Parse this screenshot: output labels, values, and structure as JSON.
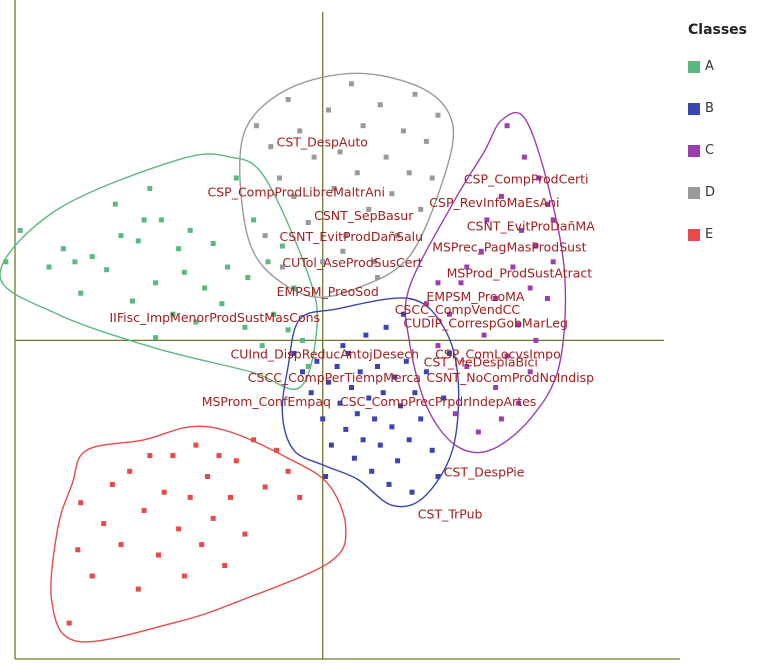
{
  "chart_data": {
    "type": "scatter",
    "title": "",
    "xlabel": "",
    "ylabel": "",
    "grid": false,
    "legend": {
      "title": "Classes",
      "placement": "right"
    },
    "classes": [
      {
        "name": "A",
        "color": "#5bb980"
      },
      {
        "name": "B",
        "color": "#3a45b0"
      },
      {
        "name": "C",
        "color": "#9b3fb0"
      },
      {
        "name": "D",
        "color": "#9a9a9a"
      },
      {
        "name": "E",
        "color": "#e84a4a"
      }
    ],
    "series": [
      {
        "name": "A",
        "hull": [
          [
            -1.12,
            0.25
          ],
          [
            -0.92,
            0.5
          ],
          [
            -0.5,
            0.69
          ],
          [
            -0.32,
            0.7
          ],
          [
            -0.2,
            0.62
          ],
          [
            -0.05,
            0.25
          ],
          [
            -0.02,
            0.05
          ],
          [
            -0.08,
            -0.18
          ],
          [
            -0.25,
            -0.12
          ],
          [
            -0.58,
            -0.03
          ],
          [
            -0.92,
            0.1
          ]
        ],
        "points": [
          [
            -1.1,
            0.3
          ],
          [
            -1.05,
            0.42
          ],
          [
            -0.95,
            0.28
          ],
          [
            -0.9,
            0.35
          ],
          [
            -0.86,
            0.3
          ],
          [
            -0.84,
            0.18
          ],
          [
            -0.8,
            0.32
          ],
          [
            -0.75,
            0.27
          ],
          [
            -0.72,
            0.52
          ],
          [
            -0.7,
            0.4
          ],
          [
            -0.66,
            0.15
          ],
          [
            -0.64,
            0.38
          ],
          [
            -0.62,
            0.46
          ],
          [
            -0.6,
            0.58
          ],
          [
            -0.58,
            0.22
          ],
          [
            -0.56,
            0.46
          ],
          [
            -0.52,
            0.1
          ],
          [
            -0.5,
            0.35
          ],
          [
            -0.48,
            0.26
          ],
          [
            -0.46,
            0.42
          ],
          [
            -0.44,
            0.07
          ],
          [
            -0.41,
            0.2
          ],
          [
            -0.38,
            0.37
          ],
          [
            -0.35,
            0.14
          ],
          [
            -0.33,
            0.28
          ],
          [
            -0.3,
            0.62
          ],
          [
            -0.27,
            0.05
          ],
          [
            -0.26,
            0.24
          ],
          [
            -0.24,
            0.46
          ],
          [
            -0.21,
            -0.02
          ],
          [
            -0.19,
            0.3
          ],
          [
            -0.17,
            0.1
          ],
          [
            -0.14,
            0.36
          ],
          [
            -0.12,
            0.04
          ],
          [
            -0.1,
            0.2
          ],
          [
            -0.07,
            0.0
          ],
          [
            -0.05,
            -0.1
          ],
          [
            -0.58,
            0.01
          ]
        ]
      },
      {
        "name": "B",
        "hull": [
          [
            -0.12,
            -0.1
          ],
          [
            -0.08,
            0.08
          ],
          [
            0.05,
            0.12
          ],
          [
            0.3,
            0.16
          ],
          [
            0.42,
            0.05
          ],
          [
            0.47,
            -0.15
          ],
          [
            0.45,
            -0.42
          ],
          [
            0.35,
            -0.6
          ],
          [
            0.24,
            -0.63
          ],
          [
            0.12,
            -0.53
          ],
          [
            0.01,
            -0.48
          ],
          [
            -0.1,
            -0.42
          ],
          [
            -0.14,
            -0.28
          ]
        ],
        "points": [
          [
            -0.1,
            -0.05
          ],
          [
            -0.07,
            -0.12
          ],
          [
            -0.04,
            -0.2
          ],
          [
            -0.02,
            -0.08
          ],
          [
            0.0,
            -0.3
          ],
          [
            0.02,
            -0.16
          ],
          [
            0.03,
            -0.4
          ],
          [
            0.05,
            -0.1
          ],
          [
            0.06,
            -0.24
          ],
          [
            0.08,
            -0.34
          ],
          [
            0.09,
            -0.05
          ],
          [
            0.1,
            -0.18
          ],
          [
            0.11,
            -0.45
          ],
          [
            0.12,
            -0.28
          ],
          [
            0.13,
            -0.12
          ],
          [
            0.14,
            -0.38
          ],
          [
            0.15,
            0.02
          ],
          [
            0.16,
            -0.22
          ],
          [
            0.17,
            -0.5
          ],
          [
            0.18,
            -0.3
          ],
          [
            0.19,
            -0.1
          ],
          [
            0.2,
            -0.4
          ],
          [
            0.21,
            -0.2
          ],
          [
            0.22,
            0.05
          ],
          [
            0.23,
            -0.55
          ],
          [
            0.24,
            -0.33
          ],
          [
            0.25,
            -0.14
          ],
          [
            0.26,
            -0.46
          ],
          [
            0.27,
            -0.25
          ],
          [
            0.28,
            0.1
          ],
          [
            0.29,
            -0.08
          ],
          [
            0.3,
            -0.38
          ],
          [
            0.31,
            -0.58
          ],
          [
            0.32,
            -0.2
          ],
          [
            0.34,
            -0.3
          ],
          [
            0.36,
            -0.12
          ],
          [
            0.38,
            -0.42
          ],
          [
            0.4,
            -0.52
          ],
          [
            0.42,
            -0.22
          ],
          [
            0.44,
            -0.05
          ],
          [
            0.07,
            -0.02
          ],
          [
            0.01,
            -0.52
          ]
        ]
      },
      {
        "name": "C",
        "hull": [
          [
            0.3,
            0.2
          ],
          [
            0.45,
            0.52
          ],
          [
            0.56,
            0.72
          ],
          [
            0.62,
            0.84
          ],
          [
            0.7,
            0.85
          ],
          [
            0.78,
            0.6
          ],
          [
            0.84,
            0.25
          ],
          [
            0.82,
            -0.1
          ],
          [
            0.72,
            -0.3
          ],
          [
            0.58,
            -0.42
          ],
          [
            0.46,
            -0.4
          ],
          [
            0.36,
            -0.25
          ],
          [
            0.3,
            0.0
          ]
        ],
        "points": [
          [
            0.64,
            0.82
          ],
          [
            0.7,
            0.7
          ],
          [
            0.75,
            0.62
          ],
          [
            0.78,
            0.52
          ],
          [
            0.8,
            0.46
          ],
          [
            0.62,
            0.55
          ],
          [
            0.57,
            0.46
          ],
          [
            0.69,
            0.42
          ],
          [
            0.74,
            0.36
          ],
          [
            0.8,
            0.3
          ],
          [
            0.55,
            0.34
          ],
          [
            0.66,
            0.28
          ],
          [
            0.72,
            0.2
          ],
          [
            0.78,
            0.16
          ],
          [
            0.48,
            0.22
          ],
          [
            0.6,
            0.16
          ],
          [
            0.68,
            0.06
          ],
          [
            0.74,
            0.0
          ],
          [
            0.44,
            0.1
          ],
          [
            0.56,
            0.02
          ],
          [
            0.64,
            -0.06
          ],
          [
            0.72,
            -0.12
          ],
          [
            0.4,
            -0.02
          ],
          [
            0.5,
            -0.1
          ],
          [
            0.6,
            -0.18
          ],
          [
            0.68,
            -0.24
          ],
          [
            0.46,
            -0.28
          ],
          [
            0.54,
            -0.35
          ],
          [
            0.62,
            -0.3
          ],
          [
            0.36,
            0.14
          ],
          [
            0.4,
            0.22
          ],
          [
            0.5,
            0.28
          ]
        ]
      },
      {
        "name": "D",
        "hull": [
          [
            -0.27,
            0.8
          ],
          [
            -0.12,
            0.96
          ],
          [
            0.12,
            1.02
          ],
          [
            0.35,
            0.96
          ],
          [
            0.45,
            0.83
          ],
          [
            0.42,
            0.62
          ],
          [
            0.3,
            0.32
          ],
          [
            0.12,
            0.2
          ],
          [
            -0.05,
            0.17
          ],
          [
            -0.22,
            0.3
          ],
          [
            -0.28,
            0.52
          ]
        ],
        "points": [
          [
            -0.23,
            0.82
          ],
          [
            -0.18,
            0.74
          ],
          [
            -0.15,
            0.62
          ],
          [
            -0.12,
            0.92
          ],
          [
            -0.1,
            0.55
          ],
          [
            -0.08,
            0.8
          ],
          [
            -0.05,
            0.45
          ],
          [
            -0.03,
            0.7
          ],
          [
            0.0,
            0.3
          ],
          [
            0.02,
            0.88
          ],
          [
            0.04,
            0.58
          ],
          [
            0.06,
            0.72
          ],
          [
            0.08,
            0.4
          ],
          [
            0.1,
            0.98
          ],
          [
            0.12,
            0.64
          ],
          [
            0.14,
            0.82
          ],
          [
            0.16,
            0.5
          ],
          [
            0.18,
            0.3
          ],
          [
            0.2,
            0.9
          ],
          [
            0.22,
            0.7
          ],
          [
            0.24,
            0.56
          ],
          [
            0.26,
            0.4
          ],
          [
            0.28,
            0.8
          ],
          [
            0.3,
            0.64
          ],
          [
            0.32,
            0.94
          ],
          [
            0.34,
            0.5
          ],
          [
            0.36,
            0.76
          ],
          [
            0.38,
            0.62
          ],
          [
            0.4,
            0.86
          ],
          [
            0.19,
            0.24
          ],
          [
            -0.2,
            0.4
          ],
          [
            -0.14,
            0.28
          ],
          [
            0.07,
            0.34
          ]
        ]
      },
      {
        "name": "E",
        "hull": [
          [
            -0.82,
            -0.42
          ],
          [
            -0.62,
            -0.38
          ],
          [
            -0.46,
            -0.33
          ],
          [
            -0.32,
            -0.35
          ],
          [
            -0.12,
            -0.45
          ],
          [
            0.02,
            -0.55
          ],
          [
            0.08,
            -0.72
          ],
          [
            0.02,
            -0.85
          ],
          [
            -0.3,
            -1.0
          ],
          [
            -0.52,
            -1.08
          ],
          [
            -0.85,
            -1.15
          ],
          [
            -0.94,
            -1.0
          ],
          [
            -0.92,
            -0.72
          ],
          [
            -0.87,
            -0.55
          ]
        ],
        "points": [
          [
            -0.88,
            -1.08
          ],
          [
            -0.85,
            -0.8
          ],
          [
            -0.84,
            -0.62
          ],
          [
            -0.8,
            -0.9
          ],
          [
            -0.76,
            -0.7
          ],
          [
            -0.73,
            -0.55
          ],
          [
            -0.7,
            -0.78
          ],
          [
            -0.67,
            -0.5
          ],
          [
            -0.64,
            -0.95
          ],
          [
            -0.62,
            -0.65
          ],
          [
            -0.6,
            -0.44
          ],
          [
            -0.57,
            -0.82
          ],
          [
            -0.55,
            -0.58
          ],
          [
            -0.52,
            -0.44
          ],
          [
            -0.5,
            -0.72
          ],
          [
            -0.48,
            -0.9
          ],
          [
            -0.46,
            -0.6
          ],
          [
            -0.44,
            -0.4
          ],
          [
            -0.42,
            -0.78
          ],
          [
            -0.4,
            -0.52
          ],
          [
            -0.38,
            -0.68
          ],
          [
            -0.36,
            -0.44
          ],
          [
            -0.34,
            -0.86
          ],
          [
            -0.32,
            -0.6
          ],
          [
            -0.3,
            -0.46
          ],
          [
            -0.27,
            -0.74
          ],
          [
            -0.24,
            -0.38
          ],
          [
            -0.2,
            -0.56
          ],
          [
            -0.16,
            -0.42
          ],
          [
            -0.12,
            -0.5
          ],
          [
            -0.08,
            -0.6
          ]
        ]
      }
    ],
    "variable_labels": [
      {
        "text": "CST_DespAuto",
        "x": -0.16,
        "y": 0.74
      },
      {
        "text": "CSP_CompProdLibreMaltrAni",
        "x": -0.4,
        "y": 0.55
      },
      {
        "text": "CSNT_SepBasur",
        "x": -0.03,
        "y": 0.46
      },
      {
        "text": "CSNT_EvitProdDañSalu",
        "x": -0.15,
        "y": 0.38
      },
      {
        "text": "CUTol_AseProdSusCert",
        "x": -0.14,
        "y": 0.28
      },
      {
        "text": "EMPSM_PreoSod",
        "x": -0.16,
        "y": 0.17
      },
      {
        "text": "IIFisc_ImpMenorProdSustMasCons",
        "x": -0.74,
        "y": 0.07
      },
      {
        "text": "CUInd_DispReducAntojDesech",
        "x": -0.32,
        "y": -0.07
      },
      {
        "text": "CSCC_CompPerTiempMerca",
        "x": -0.26,
        "y": -0.16
      },
      {
        "text": "MSProm_ConfEmpaq",
        "x": -0.42,
        "y": -0.25
      },
      {
        "text": "CSC_CompPrecPrpdrIndepArtes",
        "x": 0.06,
        "y": -0.25
      },
      {
        "text": "CSP_CompProdCerti",
        "x": 0.49,
        "y": 0.6
      },
      {
        "text": "CSP_RevInfoMaEsAni",
        "x": 0.37,
        "y": 0.51
      },
      {
        "text": "CSNT_EvitProDañMA",
        "x": 0.5,
        "y": 0.42
      },
      {
        "text": "MSPrec_PagMasProdSust",
        "x": 0.38,
        "y": 0.34
      },
      {
        "text": "MSProd_ProdSustAtract",
        "x": 0.43,
        "y": 0.24
      },
      {
        "text": "EMPSM_PreoMA",
        "x": 0.36,
        "y": 0.15
      },
      {
        "text": "CSCC_CompVendCC",
        "x": 0.25,
        "y": 0.1
      },
      {
        "text": "CUDIP_CorrespGobMarLeg",
        "x": 0.28,
        "y": 0.05
      },
      {
        "text": "CSP_ComLocvsImpo",
        "x": 0.39,
        "y": -0.07
      },
      {
        "text": "CST_MeDesplaBici",
        "x": 0.35,
        "y": -0.1
      },
      {
        "text": "CSNT_NoComProdNoIndisp",
        "x": 0.36,
        "y": -0.16
      },
      {
        "text": "CST_DespPie",
        "x": 0.42,
        "y": -0.52
      },
      {
        "text": "CST_TrPub",
        "x": 0.33,
        "y": -0.68
      }
    ],
    "axes": {
      "origin_x": 0,
      "origin_y": 0,
      "xlim": [
        -1.12,
        1.24
      ],
      "ylim": [
        -1.24,
        1.3
      ]
    }
  }
}
